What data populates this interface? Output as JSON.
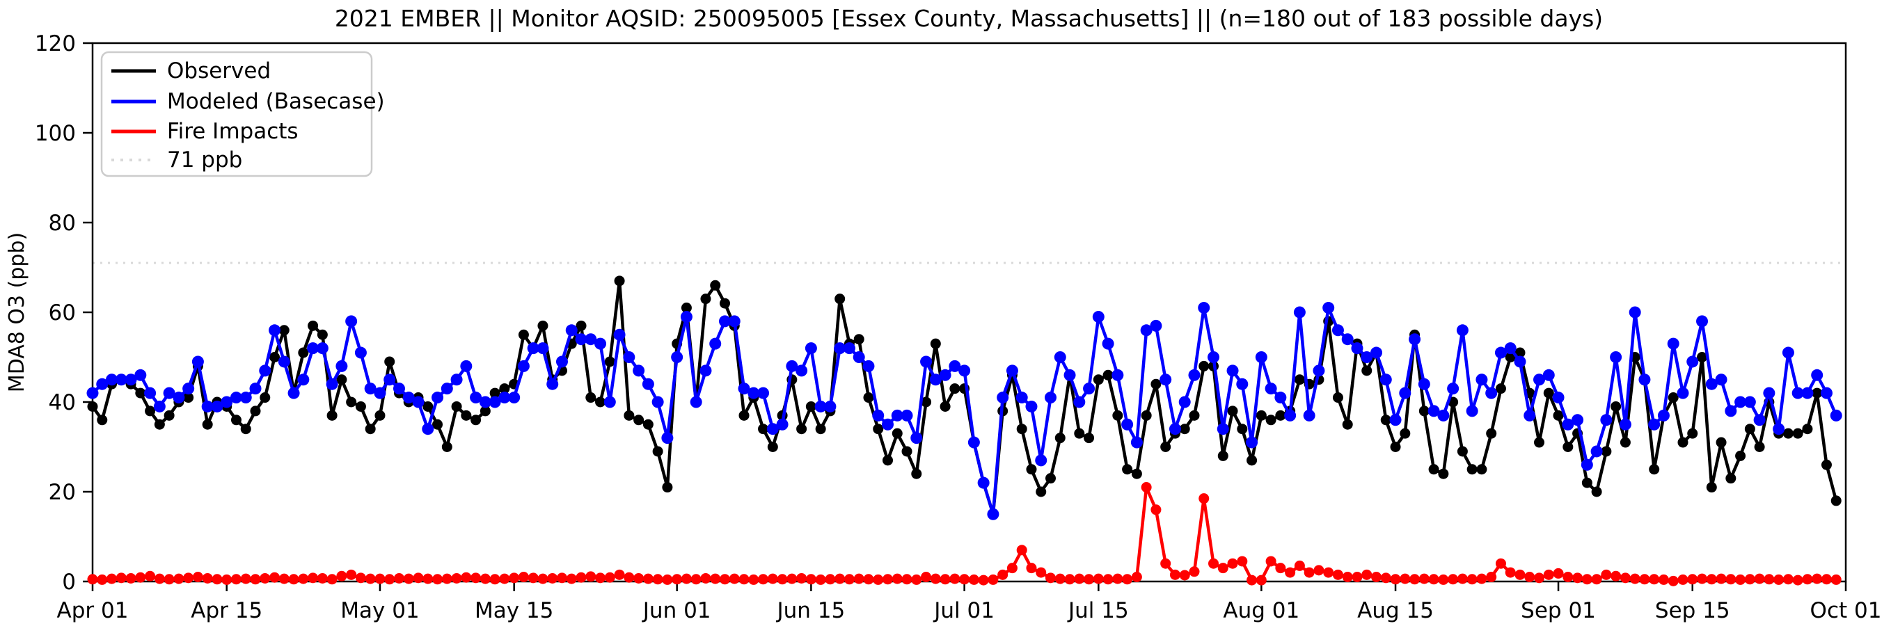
{
  "figure": {
    "title": "2021 EMBER || Monitor AQSID: 250095005 [Essex County, Massachusetts] || (n=180 out of 183 possible days)",
    "ylabel": "MDA8 O3 (ppb)"
  },
  "legend": {
    "items": [
      {
        "label": "Observed",
        "color": "#000000",
        "style": "solid"
      },
      {
        "label": "Modeled (Basecase)",
        "color": "#0000ff",
        "style": "solid"
      },
      {
        "label": "Fire Impacts",
        "color": "#ff0000",
        "style": "solid"
      },
      {
        "label": "71 ppb",
        "color": "#d9d9d9",
        "style": "dotted"
      }
    ]
  },
  "chart_data": {
    "type": "line",
    "title": "2021 EMBER || Monitor AQSID: 250095005 [Essex County, Massachusetts] || (n=180 out of 183 possible days)",
    "xlabel": "",
    "ylabel": "MDA8 O3 (ppb)",
    "ylim": [
      0,
      120
    ],
    "yticks": [
      0,
      20,
      40,
      60,
      80,
      100,
      120
    ],
    "grid": false,
    "legend_position": "upper left",
    "x_start": "2021-04-01",
    "x_step_days": 1,
    "n_points": 183,
    "xticks": [
      {
        "label": "Apr 01",
        "day": 0
      },
      {
        "label": "Apr 15",
        "day": 14
      },
      {
        "label": "May 01",
        "day": 30
      },
      {
        "label": "May 15",
        "day": 44
      },
      {
        "label": "Jun 01",
        "day": 61
      },
      {
        "label": "Jun 15",
        "day": 75
      },
      {
        "label": "Jul 01",
        "day": 91
      },
      {
        "label": "Jul 15",
        "day": 105
      },
      {
        "label": "Aug 01",
        "day": 122
      },
      {
        "label": "Aug 15",
        "day": 136
      },
      {
        "label": "Sep 01",
        "day": 153
      },
      {
        "label": "Sep 15",
        "day": 167
      },
      {
        "label": "Oct 01",
        "day": 183
      }
    ],
    "threshold": {
      "value": 71,
      "label": "71 ppb",
      "color": "#d9d9d9"
    },
    "series": [
      {
        "name": "Observed",
        "color": "#000000",
        "values": [
          39,
          36,
          44,
          45,
          44,
          42,
          38,
          35,
          37,
          40,
          41,
          48,
          35,
          40,
          39,
          36,
          34,
          38,
          41,
          50,
          56,
          42,
          51,
          57,
          55,
          37,
          45,
          40,
          39,
          34,
          37,
          49,
          42,
          40,
          41,
          39,
          35,
          30,
          39,
          37,
          36,
          38,
          42,
          43,
          44,
          55,
          52,
          57,
          45,
          47,
          53,
          57,
          41,
          40,
          49,
          67,
          37,
          36,
          35,
          29,
          21,
          53,
          61,
          40,
          63,
          66,
          62,
          57,
          37,
          41,
          34,
          30,
          37,
          45,
          34,
          39,
          34,
          38,
          63,
          53,
          54,
          41,
          34,
          27,
          33,
          29,
          24,
          40,
          53,
          39,
          43,
          43,
          31,
          22,
          15,
          38,
          46,
          34,
          25,
          20,
          23,
          32,
          46,
          33,
          32,
          45,
          46,
          37,
          25,
          24,
          37,
          44,
          30,
          33,
          34,
          37,
          48,
          48,
          28,
          38,
          34,
          27,
          37,
          36,
          37,
          38,
          45,
          44,
          45,
          58,
          41,
          35,
          53,
          47,
          51,
          36,
          30,
          33,
          55,
          38,
          25,
          24,
          40,
          29,
          25,
          25,
          33,
          43,
          50,
          51,
          42,
          31,
          42,
          37,
          30,
          33,
          22,
          20,
          29,
          39,
          31,
          50,
          45,
          25,
          37,
          41,
          31,
          33,
          50,
          21,
          31,
          23,
          28,
          34,
          30,
          40,
          33,
          33,
          33,
          34,
          42,
          26,
          18
        ]
      },
      {
        "name": "Modeled (Basecase)",
        "color": "#0000ff",
        "values": [
          42,
          44,
          45,
          45,
          45,
          46,
          42,
          39,
          42,
          41,
          43,
          49,
          39,
          39,
          40,
          41,
          41,
          43,
          47,
          56,
          49,
          42,
          45,
          52,
          52,
          44,
          48,
          58,
          51,
          43,
          42,
          45,
          43,
          41,
          40,
          34,
          41,
          43,
          45,
          48,
          41,
          40,
          40,
          41,
          41,
          48,
          52,
          52,
          44,
          49,
          56,
          54,
          54,
          53,
          40,
          55,
          50,
          47,
          44,
          40,
          32,
          50,
          59,
          40,
          47,
          53,
          58,
          58,
          43,
          42,
          42,
          34,
          35,
          48,
          47,
          52,
          39,
          39,
          52,
          52,
          50,
          48,
          37,
          35,
          37,
          37,
          32,
          49,
          45,
          46,
          48,
          47,
          31,
          22,
          15,
          41,
          47,
          41,
          39,
          27,
          41,
          50,
          46,
          40,
          43,
          59,
          53,
          46,
          35,
          31,
          56,
          57,
          45,
          34,
          40,
          46,
          61,
          50,
          34,
          47,
          44,
          31,
          50,
          43,
          41,
          37,
          60,
          37,
          47,
          61,
          56,
          54,
          52,
          50,
          51,
          45,
          36,
          42,
          54,
          44,
          38,
          37,
          43,
          56,
          38,
          45,
          42,
          51,
          52,
          49,
          37,
          45,
          46,
          41,
          35,
          36,
          26,
          29,
          36,
          50,
          35,
          60,
          45,
          35,
          37,
          53,
          42,
          49,
          58,
          44,
          45,
          38,
          40,
          40,
          36,
          42,
          34,
          51,
          42,
          42,
          46,
          42,
          37
        ]
      },
      {
        "name": "Fire Impacts",
        "color": "#ff0000",
        "values": [
          0.5,
          0.4,
          0.6,
          0.8,
          0.7,
          0.9,
          1.2,
          0.6,
          0.5,
          0.6,
          0.8,
          1.0,
          0.7,
          0.5,
          0.4,
          0.5,
          0.6,
          0.5,
          0.7,
          0.9,
          0.6,
          0.5,
          0.6,
          0.8,
          0.7,
          0.5,
          1.2,
          1.5,
          0.8,
          0.6,
          0.6,
          0.5,
          0.7,
          0.6,
          0.8,
          0.6,
          0.5,
          0.6,
          0.7,
          0.9,
          0.8,
          0.6,
          0.5,
          0.6,
          0.8,
          1.0,
          0.8,
          0.6,
          0.7,
          0.8,
          0.6,
          0.9,
          1.1,
          0.8,
          0.9,
          1.5,
          0.9,
          0.7,
          0.6,
          0.5,
          0.4,
          0.5,
          0.6,
          0.5,
          0.7,
          0.6,
          0.5,
          0.6,
          0.5,
          0.4,
          0.5,
          0.6,
          0.5,
          0.6,
          0.7,
          0.5,
          0.4,
          0.5,
          0.6,
          0.5,
          0.6,
          0.5,
          0.4,
          0.5,
          0.6,
          0.5,
          0.4,
          1.0,
          0.6,
          0.5,
          0.6,
          0.5,
          0.4,
          0.3,
          0.4,
          1.5,
          3.0,
          7.0,
          3.0,
          2.0,
          0.8,
          0.6,
          0.5,
          0.6,
          0.5,
          0.6,
          0.5,
          0.6,
          0.5,
          1.0,
          21.0,
          16.0,
          4.0,
          1.5,
          1.4,
          2.2,
          18.5,
          4.0,
          3.0,
          4.0,
          4.5,
          0.3,
          0.3,
          4.5,
          3.0,
          2.0,
          3.5,
          2.0,
          2.5,
          2.0,
          1.5,
          1.0,
          1.0,
          1.5,
          1.0,
          0.8,
          0.5,
          0.6,
          0.5,
          0.6,
          0.5,
          0.4,
          0.5,
          0.6,
          0.5,
          0.6,
          1.0,
          4.0,
          2.0,
          1.5,
          1.0,
          0.8,
          1.5,
          1.8,
          1.0,
          0.8,
          0.5,
          0.5,
          1.5,
          1.2,
          0.8,
          0.6,
          0.5,
          0.5,
          0.4,
          0.1,
          0.4,
          0.5,
          0.6,
          0.5,
          0.6,
          0.5,
          0.4,
          0.5,
          0.6,
          0.5,
          0.4,
          0.5,
          0.3,
          0.5,
          0.6,
          0.5,
          0.4
        ]
      }
    ]
  }
}
